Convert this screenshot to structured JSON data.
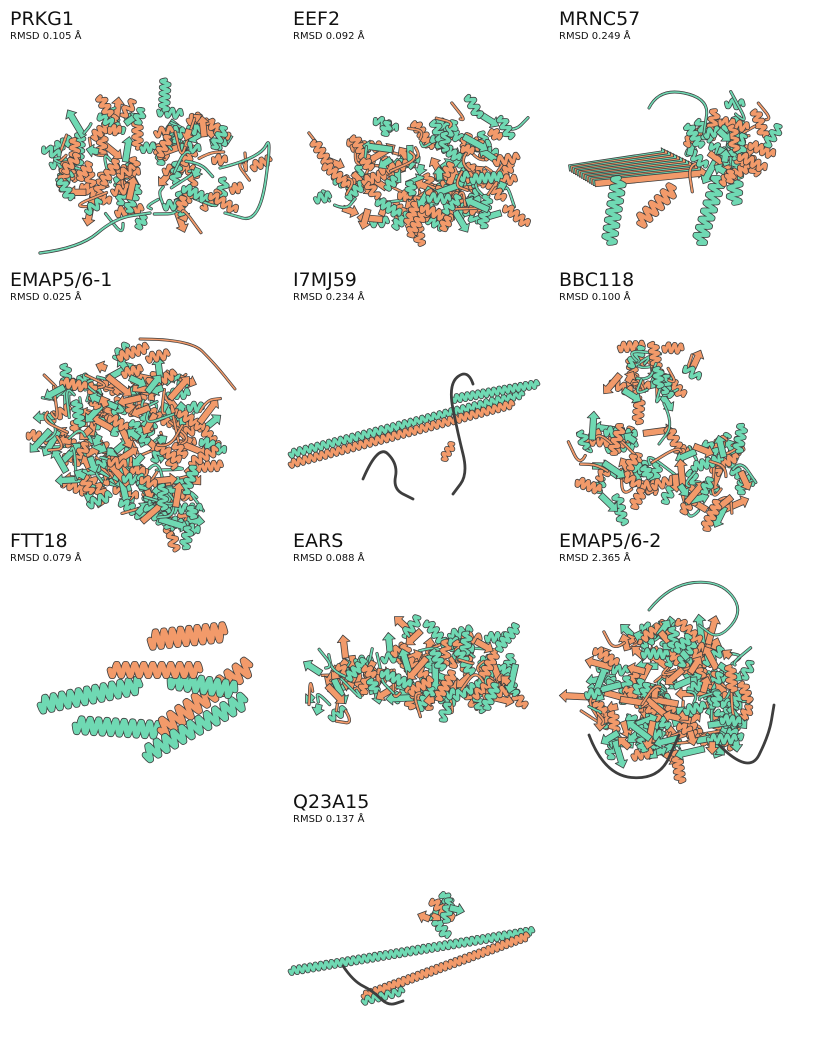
{
  "colors": {
    "model_a": "#f29a6a",
    "model_b": "#6fd9b3",
    "outline": "#3e3e3e"
  },
  "panels": [
    {
      "name": "PRKG1",
      "rmsd": "RMSD 0.105 Å",
      "shape": "globular-loops"
    },
    {
      "name": "EEF2",
      "rmsd": "RMSD 0.092 Å",
      "shape": "globular-wide"
    },
    {
      "name": "MRNC57",
      "rmsd": "RMSD 0.249 Å",
      "shape": "sheet-helices"
    },
    {
      "name": "EMAP5/6-1",
      "rmsd": "RMSD 0.025 Å",
      "shape": "dense-ball"
    },
    {
      "name": "I7MJ59",
      "rmsd": "RMSD 0.234 Å",
      "shape": "long-coiled-coil"
    },
    {
      "name": "BBC118",
      "rmsd": "RMSD 0.100 Å",
      "shape": "two-domain-vertical"
    },
    {
      "name": "FTT18",
      "rmsd": "RMSD 0.079 Å",
      "shape": "helix-bundle"
    },
    {
      "name": "EARS",
      "rmsd": "RMSD 0.088 Å",
      "shape": "globular-flat"
    },
    {
      "name": "EMAP5/6-2",
      "rmsd": "RMSD 2.365 Å",
      "shape": "dense-ball-loops"
    },
    {
      "name": "Q23A15",
      "rmsd": "RMSD 0.137 Å",
      "shape": "long-coiled-coil-2"
    }
  ]
}
